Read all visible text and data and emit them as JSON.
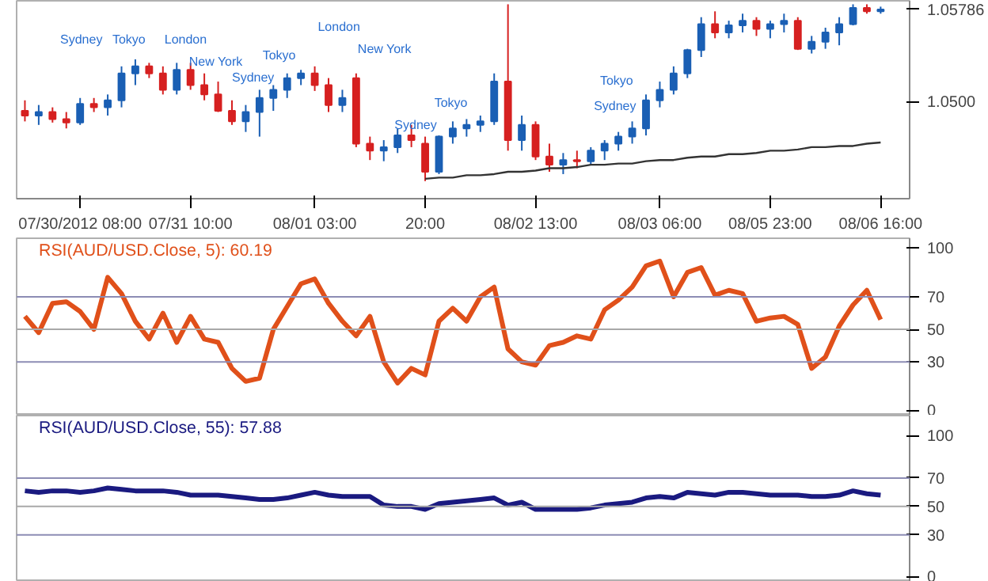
{
  "chart_data": [
    {
      "type": "candlestick",
      "ylim": [
        1.0417,
        1.0586
      ],
      "yticks": [
        {
          "value": 1.05,
          "label": "1.0500"
        },
        {
          "value": 1.05786,
          "label": "1.05786"
        }
      ],
      "categories": [
        null,
        null,
        null,
        null,
        "07/30/2012 08:00",
        null,
        null,
        null,
        null,
        null,
        null,
        null,
        "07/31 10:00",
        null,
        null,
        null,
        null,
        null,
        null,
        null,
        null,
        "08/01 03:00",
        null,
        null,
        null,
        null,
        null,
        null,
        null,
        "20:00",
        null,
        null,
        null,
        null,
        null,
        null,
        null,
        "08/02 13:00",
        null,
        null,
        null,
        null,
        null,
        null,
        null,
        null,
        "08/03 06:00",
        null,
        null,
        null,
        null,
        null,
        null,
        null,
        "08/05 23:00",
        null,
        null,
        null,
        null,
        null,
        null,
        null,
        "08/06 16:00"
      ],
      "ohlc": [
        [
          1.0492,
          1.0501,
          1.0483,
          1.0488
        ],
        [
          1.0488,
          1.0497,
          1.048,
          1.0491
        ],
        [
          1.0491,
          1.0495,
          1.0482,
          1.0485
        ],
        [
          1.0485,
          1.0491,
          1.0477,
          1.0482
        ],
        [
          1.0482,
          1.0503,
          1.048,
          1.0498
        ],
        [
          1.0498,
          1.0503,
          1.0491,
          1.0495
        ],
        [
          1.0495,
          1.0506,
          1.0488,
          1.0501
        ],
        [
          1.0501,
          1.053,
          1.0495,
          1.0524
        ],
        [
          1.0524,
          1.0536,
          1.0514,
          1.053
        ],
        [
          1.053,
          1.0533,
          1.052,
          1.0524
        ],
        [
          1.0524,
          1.053,
          1.0506,
          1.051
        ],
        [
          1.051,
          1.0533,
          1.0506,
          1.0527
        ],
        [
          1.0527,
          1.0533,
          1.051,
          1.0514
        ],
        [
          1.0514,
          1.0524,
          1.0501,
          1.0506
        ],
        [
          1.0506,
          1.0517,
          1.0491,
          1.0492
        ],
        [
          1.0492,
          1.0501,
          1.048,
          1.0483
        ],
        [
          1.0483,
          1.0497,
          1.0474,
          1.0491
        ],
        [
          1.0491,
          1.051,
          1.047,
          1.0503
        ],
        [
          1.0503,
          1.0514,
          1.0492,
          1.051
        ],
        [
          1.051,
          1.0524,
          1.0503,
          1.052
        ],
        [
          1.052,
          1.0527,
          1.0514,
          1.0524
        ],
        [
          1.0524,
          1.053,
          1.0509,
          1.0514
        ],
        [
          1.0514,
          1.052,
          1.0491,
          1.0497
        ],
        [
          1.0497,
          1.051,
          1.0491,
          1.0503
        ],
        [
          1.052,
          1.0524,
          1.0461,
          1.0464
        ],
        [
          1.0464,
          1.047,
          1.045,
          1.0458
        ],
        [
          1.0458,
          1.0467,
          1.0449,
          1.0461
        ],
        [
          1.0461,
          1.0477,
          1.0456,
          1.0471
        ],
        [
          1.0471,
          1.048,
          1.0461,
          1.0467
        ],
        [
          1.0464,
          1.047,
          1.0432,
          1.044
        ],
        [
          1.044,
          1.0471,
          1.0438,
          1.047
        ],
        [
          1.047,
          1.0483,
          1.0464,
          1.0477
        ],
        [
          1.0477,
          1.0485,
          1.047,
          1.048
        ],
        [
          1.048,
          1.0488,
          1.0474,
          1.0483
        ],
        [
          1.0483,
          1.0524,
          1.048,
          1.0517
        ],
        [
          1.0517,
          1.0583,
          1.0458,
          1.0467
        ],
        [
          1.0467,
          1.0488,
          1.0458,
          1.048
        ],
        [
          1.048,
          1.0483,
          1.045,
          1.0453
        ],
        [
          1.0453,
          1.0464,
          1.044,
          1.0446
        ],
        [
          1.0446,
          1.0456,
          1.0438,
          1.045
        ],
        [
          1.045,
          1.0458,
          1.0443,
          1.0449
        ],
        [
          1.0449,
          1.0461,
          1.0446,
          1.0458
        ],
        [
          1.0458,
          1.0467,
          1.045,
          1.0464
        ],
        [
          1.0464,
          1.0474,
          1.0458,
          1.047
        ],
        [
          1.047,
          1.0483,
          1.0464,
          1.0477
        ],
        [
          1.0477,
          1.0506,
          1.0471,
          1.0501
        ],
        [
          1.0501,
          1.0517,
          1.0495,
          1.051
        ],
        [
          1.051,
          1.053,
          1.0506,
          1.0524
        ],
        [
          1.0524,
          1.0545,
          1.052,
          1.0544
        ],
        [
          1.0544,
          1.0572,
          1.0538,
          1.0566
        ],
        [
          1.0566,
          1.0577,
          1.0554,
          1.0559
        ],
        [
          1.0559,
          1.0569,
          1.0554,
          1.0565
        ],
        [
          1.0565,
          1.0575,
          1.0559,
          1.0569
        ],
        [
          1.0569,
          1.0572,
          1.0556,
          1.0562
        ],
        [
          1.0562,
          1.0569,
          1.0554,
          1.0566
        ],
        [
          1.0566,
          1.0575,
          1.0559,
          1.0569
        ],
        [
          1.0569,
          1.0572,
          1.0544,
          1.0545
        ],
        [
          1.0545,
          1.0556,
          1.0541,
          1.0551
        ],
        [
          1.0551,
          1.0563,
          1.0545,
          1.0559
        ],
        [
          1.0559,
          1.0572,
          1.0548,
          1.0566
        ],
        [
          1.0566,
          1.0583,
          1.0565,
          1.058
        ],
        [
          1.058,
          1.0583,
          1.0575,
          1.0577
        ],
        [
          1.0577,
          1.0581,
          1.0575,
          1.05786
        ]
      ],
      "colors": [
        "#d62020",
        "#1a5fb4",
        "#d62020",
        "#d62020",
        "#1a5fb4",
        "#d62020",
        "#1a5fb4",
        "#1a5fb4",
        "#1a5fb4",
        "#d62020",
        "#d62020",
        "#1a5fb4",
        "#d62020",
        "#d62020",
        "#d62020",
        "#d62020",
        "#1a5fb4",
        "#1a5fb4",
        "#1a5fb4",
        "#1a5fb4",
        "#1a5fb4",
        "#d62020",
        "#d62020",
        "#1a5fb4",
        "#d62020",
        "#d62020",
        "#1a5fb4",
        "#1a5fb4",
        "#d62020",
        "#d62020",
        "#1a5fb4",
        "#1a5fb4",
        "#1a5fb4",
        "#1a5fb4",
        "#1a5fb4",
        "#d62020",
        "#1a5fb4",
        "#d62020",
        "#d62020",
        "#1a5fb4",
        "#d62020",
        "#1a5fb4",
        "#1a5fb4",
        "#1a5fb4",
        "#1a5fb4",
        "#1a5fb4",
        "#1a5fb4",
        "#1a5fb4",
        "#1a5fb4",
        "#1a5fb4",
        "#d62020",
        "#1a5fb4",
        "#1a5fb4",
        "#d62020",
        "#1a5fb4",
        "#1a5fb4",
        "#d62020",
        "#1a5fb4",
        "#1a5fb4",
        "#1a5fb4",
        "#1a5fb4",
        "#d62020",
        "#1a5fb4"
      ],
      "series": [
        {
          "type": "line",
          "color": "#333333",
          "values": [
            null,
            null,
            null,
            null,
            null,
            null,
            null,
            null,
            null,
            null,
            null,
            null,
            null,
            null,
            null,
            null,
            null,
            null,
            null,
            null,
            null,
            null,
            null,
            null,
            null,
            null,
            null,
            null,
            null,
            1.0434,
            1.0435,
            1.0435,
            1.0437,
            1.0437,
            1.0438,
            1.044,
            1.044,
            1.0441,
            1.0443,
            1.0443,
            1.0444,
            1.0446,
            1.0446,
            1.0447,
            1.0447,
            1.0449,
            1.045,
            1.045,
            1.0452,
            1.0453,
            1.0453,
            1.0455,
            1.0455,
            1.0456,
            1.0458,
            1.0458,
            1.0459,
            1.0461,
            1.0461,
            1.0462,
            1.0462,
            1.0464,
            1.0465
          ]
        }
      ],
      "annotations": [
        "Sydney",
        "Tokyo",
        "London",
        "New York",
        "Tokyo",
        "Sydney",
        "London",
        "New York",
        "Tokyo",
        "Sydney",
        "Tokyo",
        "Sydney"
      ]
    },
    {
      "type": "line",
      "title": "RSI(AUD/USD.Close, 5): 60.19",
      "tick_labels": "y",
      "series": [
        {
          "color": "#e0501a",
          "values": [
            58,
            48,
            66,
            67,
            61,
            50,
            82,
            72,
            55,
            44,
            60,
            42,
            58,
            44,
            42,
            26,
            18,
            20,
            50,
            64,
            78,
            81,
            66,
            55,
            46,
            58,
            30,
            17,
            26,
            22,
            55,
            63,
            55,
            70,
            76,
            38,
            30,
            28,
            40,
            42,
            46,
            44,
            62,
            68,
            76,
            89,
            92,
            70,
            85,
            88,
            71,
            74,
            72,
            55,
            57,
            58,
            53,
            26,
            33,
            52,
            65,
            74,
            56
          ]
        }
      ],
      "ylim": [
        -3,
        106
      ],
      "yticks": [
        0,
        30,
        50,
        70,
        100
      ],
      "ref_lines": [
        {
          "axis": "y",
          "value": 30,
          "color": "#8c8cb4"
        },
        {
          "axis": "y",
          "value": 50,
          "color": "#a8a8a8"
        },
        {
          "axis": "y",
          "value": 70,
          "color": "#8c8cb4"
        }
      ]
    },
    {
      "type": "line",
      "title": "RSI(AUD/USD.Close, 55): 57.88",
      "tick_labels": "y",
      "series": [
        {
          "color": "#1a1a80",
          "values": [
            61,
            60,
            61,
            61,
            60,
            61,
            63,
            62,
            61,
            61,
            61,
            60,
            58,
            58,
            58,
            57,
            56,
            55,
            55,
            56,
            58,
            60,
            58,
            57,
            57,
            57,
            51,
            50,
            50,
            48,
            52,
            53,
            54,
            55,
            56,
            51,
            53,
            48,
            48,
            48,
            48,
            49,
            51,
            52,
            53,
            56,
            57,
            56,
            60,
            59,
            58,
            60,
            60,
            59,
            58,
            58,
            58,
            57,
            57,
            58,
            61,
            59,
            58
          ]
        }
      ],
      "ylim": [
        -3,
        114
      ],
      "yticks": [
        0,
        30,
        50,
        70,
        100
      ],
      "ref_lines": [
        {
          "axis": "y",
          "value": 30,
          "color": "#8c8cb4"
        },
        {
          "axis": "y",
          "value": 50,
          "color": "#a8a8a8"
        },
        {
          "axis": "y",
          "value": 70,
          "color": "#8c8cb4"
        }
      ]
    }
  ]
}
